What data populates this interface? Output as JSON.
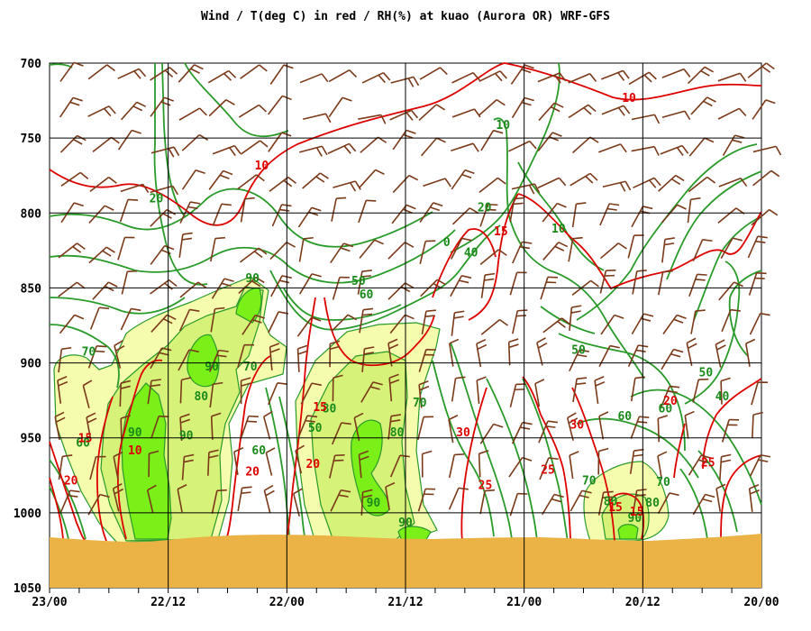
{
  "chart_data": {
    "type": "cross-section",
    "title": "Wind / T(deg C) in red / RH(%) at kuao (Aurora OR)  WRF-GFS",
    "y_axis": {
      "ticks": [
        700,
        750,
        800,
        850,
        900,
        950,
        1000,
        1050
      ],
      "min": 700,
      "max": 1050
    },
    "x_axis": {
      "ticks": [
        "23/00",
        "22/12",
        "22/00",
        "21/12",
        "21/00",
        "20/12",
        "20/00"
      ]
    },
    "grid": true,
    "rh_fill_levels": [
      70,
      80,
      90
    ],
    "rh_labels": [
      {
        "text": "20",
        "t": 0.15,
        "p": 790
      },
      {
        "text": "90",
        "t": 0.285,
        "p": 843
      },
      {
        "text": "90",
        "t": 0.228,
        "p": 902
      },
      {
        "text": "80",
        "t": 0.213,
        "p": 922
      },
      {
        "text": "70",
        "t": 0.055,
        "p": 892
      },
      {
        "text": "90",
        "t": 0.12,
        "p": 946
      },
      {
        "text": "90",
        "t": 0.192,
        "p": 948
      },
      {
        "text": "60",
        "t": 0.047,
        "p": 953
      },
      {
        "text": "70",
        "t": 0.282,
        "p": 902
      },
      {
        "text": "60",
        "t": 0.294,
        "p": 958
      },
      {
        "text": "50",
        "t": 0.373,
        "p": 943
      },
      {
        "text": "80",
        "t": 0.393,
        "p": 930
      },
      {
        "text": "80",
        "t": 0.488,
        "p": 946
      },
      {
        "text": "90",
        "t": 0.455,
        "p": 993
      },
      {
        "text": "90",
        "t": 0.5,
        "p": 1006
      },
      {
        "text": "70",
        "t": 0.52,
        "p": 926
      },
      {
        "text": "50",
        "t": 0.434,
        "p": 845
      },
      {
        "text": "60",
        "t": 0.445,
        "p": 854
      },
      {
        "text": "40",
        "t": 0.592,
        "p": 826
      },
      {
        "text": "20",
        "t": 0.611,
        "p": 796
      },
      {
        "text": "10",
        "t": 0.637,
        "p": 741
      },
      {
        "text": "10",
        "t": 0.715,
        "p": 810
      },
      {
        "text": "50",
        "t": 0.743,
        "p": 891
      },
      {
        "text": "60",
        "t": 0.808,
        "p": 935
      },
      {
        "text": "70",
        "t": 0.758,
        "p": 978
      },
      {
        "text": "80",
        "t": 0.788,
        "p": 992
      },
      {
        "text": "90",
        "t": 0.822,
        "p": 1003
      },
      {
        "text": "80",
        "t": 0.847,
        "p": 993
      },
      {
        "text": "70",
        "t": 0.862,
        "p": 979
      },
      {
        "text": "60",
        "t": 0.865,
        "p": 930
      },
      {
        "text": "50",
        "t": 0.922,
        "p": 906
      },
      {
        "text": "40",
        "t": 0.945,
        "p": 922
      },
      {
        "text": "0",
        "t": 0.558,
        "p": 819
      }
    ],
    "temperature_labels": [
      {
        "text": "10",
        "t": 0.298,
        "p": 768
      },
      {
        "text": "10",
        "t": 0.814,
        "p": 723
      },
      {
        "text": "15",
        "t": 0.634,
        "p": 812
      },
      {
        "text": "15",
        "t": 0.38,
        "p": 929
      },
      {
        "text": "20",
        "t": 0.37,
        "p": 967
      },
      {
        "text": "20",
        "t": 0.285,
        "p": 972
      },
      {
        "text": "10",
        "t": 0.12,
        "p": 958
      },
      {
        "text": "15",
        "t": 0.05,
        "p": 950
      },
      {
        "text": "20",
        "t": 0.03,
        "p": 978
      },
      {
        "text": "20",
        "t": 0.872,
        "p": 925
      },
      {
        "text": "25",
        "t": 0.925,
        "p": 966
      },
      {
        "text": "25",
        "t": 0.612,
        "p": 981
      },
      {
        "text": "25",
        "t": 0.7,
        "p": 971
      },
      {
        "text": "30",
        "t": 0.581,
        "p": 946
      },
      {
        "text": "30",
        "t": 0.741,
        "p": 941
      },
      {
        "text": "15",
        "t": 0.795,
        "p": 996
      },
      {
        "text": "15",
        "t": 0.825,
        "p": 999
      }
    ]
  }
}
